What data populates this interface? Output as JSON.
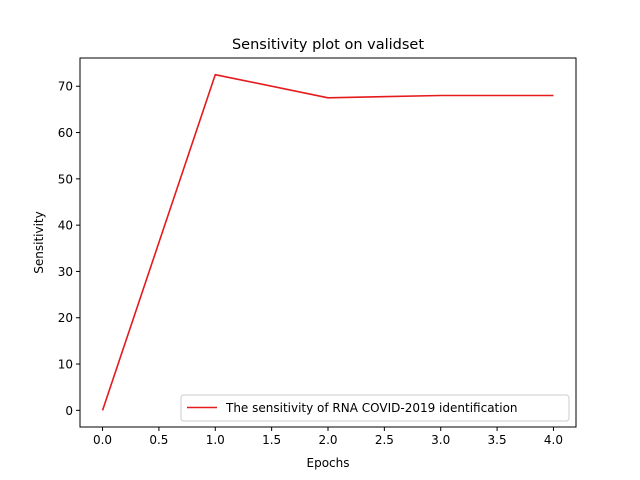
{
  "chart_data": {
    "type": "line",
    "title": "Sensitivity plot on validset",
    "xlabel": "Epochs",
    "ylabel": "Sensitivity",
    "xlim": [
      -0.2,
      4.2
    ],
    "ylim": [
      -3.6,
      76.1
    ],
    "x_ticks": [
      0.0,
      0.5,
      1.0,
      1.5,
      2.0,
      2.5,
      3.0,
      3.5,
      4.0
    ],
    "x_tick_labels": [
      "0.0",
      "0.5",
      "1.0",
      "1.5",
      "2.0",
      "2.5",
      "3.0",
      "3.5",
      "4.0"
    ],
    "y_ticks": [
      0,
      10,
      20,
      30,
      40,
      50,
      60,
      70
    ],
    "y_tick_labels": [
      "0",
      "10",
      "20",
      "30",
      "40",
      "50",
      "60",
      "70"
    ],
    "grid": false,
    "legend_position": "lower-right",
    "series": [
      {
        "name": "The sensitivity of RNA COVID-2019 identification",
        "color": "#e41a1c",
        "x": [
          0,
          1,
          2,
          3,
          4
        ],
        "y": [
          0,
          72.5,
          67.5,
          68.0,
          68.0
        ]
      }
    ]
  }
}
